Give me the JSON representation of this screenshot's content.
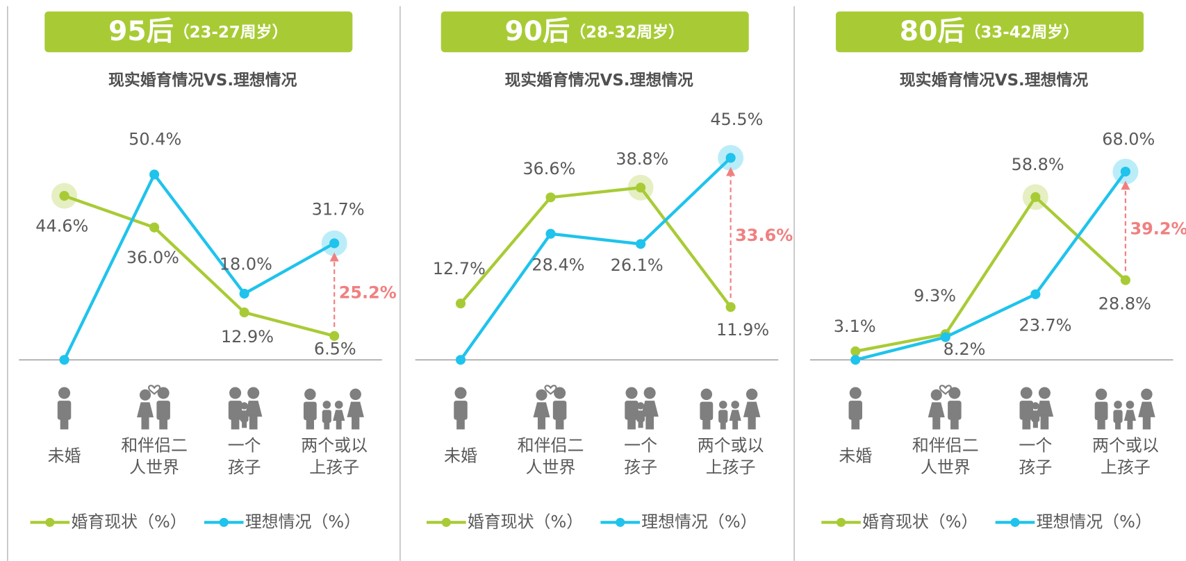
{
  "chart_data": [
    {
      "type": "line",
      "title": "95后",
      "subtitle": "（23-27周岁）",
      "chart_title": "现实婚育情况VS.理想情况",
      "categories": [
        [
          "未婚"
        ],
        [
          "和伴侣二",
          "人世界"
        ],
        [
          "一个",
          "孩子"
        ],
        [
          "两个或以",
          "上孩子"
        ]
      ],
      "series": [
        {
          "name": "婚育现状（%）",
          "color": "#a8cb35",
          "values": [
            44.6,
            36.0,
            12.9,
            6.5
          ],
          "value_labels": [
            "44.6%",
            "36.0%",
            "12.9%",
            "6.5%"
          ]
        },
        {
          "name": "理想情况（%）",
          "color": "#1fc3ec",
          "values": [
            0,
            50.4,
            18.0,
            31.7
          ],
          "value_labels": [
            null,
            "50.4%",
            "18.0%",
            "31.7%"
          ]
        }
      ],
      "ylim": [
        0,
        67
      ],
      "difference": 25.2,
      "difference_label": "25.2%"
    },
    {
      "type": "line",
      "title": "90后",
      "subtitle": "（28-32周岁）",
      "chart_title": "现实婚育情况VS.理想情况",
      "categories": [
        [
          "未婚"
        ],
        [
          "和伴侣二",
          "人世界"
        ],
        [
          "一个",
          "孩子"
        ],
        [
          "两个或以",
          "上孩子"
        ]
      ],
      "series": [
        {
          "name": "婚育现状（%）",
          "color": "#a8cb35",
          "values": [
            12.7,
            36.6,
            38.8,
            11.9
          ],
          "value_labels": [
            "12.7%",
            "36.6%",
            "38.8%",
            "11.9%"
          ]
        },
        {
          "name": "理想情况（%）",
          "color": "#1fc3ec",
          "values": [
            0,
            28.4,
            26.1,
            45.5
          ],
          "value_labels": [
            null,
            "28.4%",
            "26.1%",
            "45.5%"
          ]
        }
      ],
      "ylim": [
        0,
        55.5
      ],
      "difference": 33.6,
      "difference_label": "33.6%"
    },
    {
      "type": "line",
      "title": "80后",
      "subtitle": "（33-42周岁）",
      "chart_title": "现实婚育情况VS.理想情况",
      "categories": [
        [
          "未婚"
        ],
        [
          "和伴侣二",
          "人世界"
        ],
        [
          "一个",
          "孩子"
        ],
        [
          "两个或以",
          "上孩子"
        ]
      ],
      "series": [
        {
          "name": "婚育现状（%）",
          "color": "#a8cb35",
          "values": [
            3.1,
            9.3,
            58.8,
            28.8
          ],
          "value_labels": [
            "3.1%",
            "9.3%",
            "58.8%",
            "28.8%"
          ]
        },
        {
          "name": "理想情况（%）",
          "color": "#1fc3ec",
          "values": [
            0,
            8.2,
            23.7,
            68.0
          ],
          "value_labels": [
            null,
            "8.2%",
            "23.7%",
            "68.0%"
          ]
        }
      ],
      "ylim": [
        0,
        89
      ],
      "difference": 39.2,
      "difference_label": "39.2%"
    }
  ]
}
